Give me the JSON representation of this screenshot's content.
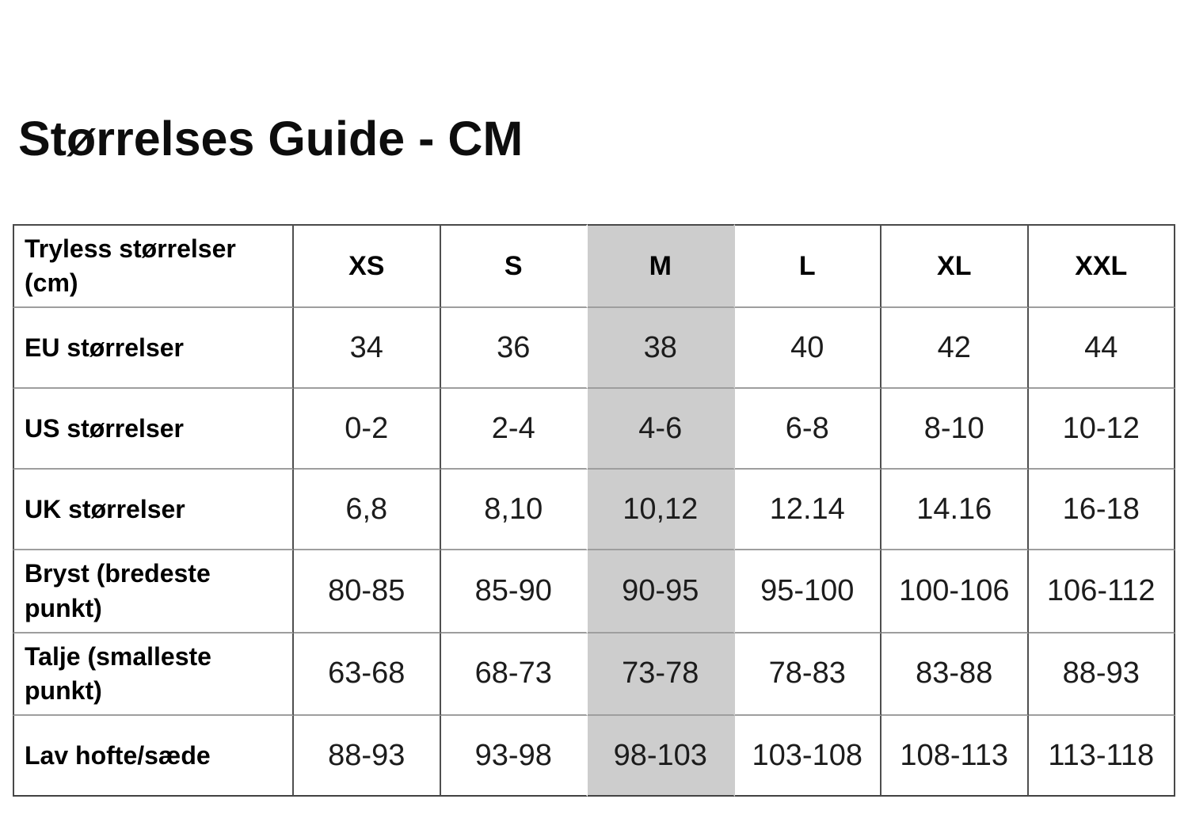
{
  "page": {
    "title": "Størrelses Guide - CM"
  },
  "table": {
    "highlight_column": "M",
    "highlight_color": "#cdcdcd",
    "corner_label": "Tryless størrelser (cm)",
    "columns": [
      "XS",
      "S",
      "M",
      "L",
      "XL",
      "XXL"
    ],
    "rows": [
      {
        "label": "EU størrelser",
        "values": [
          "34",
          "36",
          "38",
          "40",
          "42",
          "44"
        ]
      },
      {
        "label": "US størrelser",
        "values": [
          "0-2",
          "2-4",
          "4-6",
          "6-8",
          "8-10",
          "10-12"
        ]
      },
      {
        "label": "UK størrelser",
        "values": [
          "6,8",
          "8,10",
          "10,12",
          "12.14",
          "14.16",
          "16-18"
        ]
      },
      {
        "label": "Bryst (bredeste punkt)",
        "values": [
          "80-85",
          "85-90",
          "90-95",
          "95-100",
          "100-106",
          "106-112"
        ]
      },
      {
        "label": "Talje (smalleste punkt)",
        "values": [
          "63-68",
          "68-73",
          "73-78",
          "78-83",
          "83-88",
          "88-93"
        ]
      },
      {
        "label": "Lav hofte/sæde",
        "values": [
          "88-93",
          "93-98",
          "98-103",
          "103-108",
          "108-113",
          "113-118"
        ]
      }
    ]
  }
}
